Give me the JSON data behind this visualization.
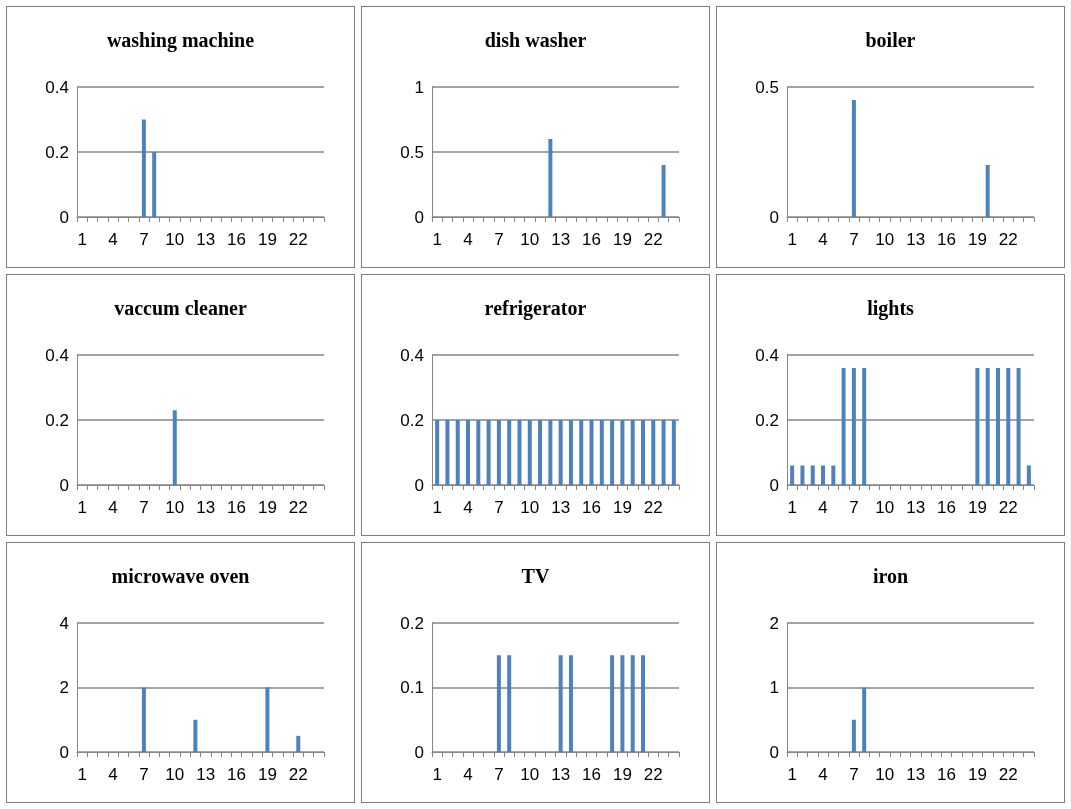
{
  "chart_data": [
    {
      "type": "bar",
      "title": "washing machine",
      "categories": [
        "1",
        null,
        null,
        "4",
        null,
        null,
        "7",
        null,
        null,
        "10",
        null,
        null,
        "13",
        null,
        null,
        "16",
        null,
        null,
        "19",
        null,
        null,
        "22",
        null,
        null
      ],
      "values": [
        0,
        0,
        0,
        0,
        0,
        0,
        0.3,
        0.2,
        0,
        0,
        0,
        0,
        0,
        0,
        0,
        0,
        0,
        0,
        0,
        0,
        0,
        0,
        0,
        0
      ],
      "color": "#4f81bd",
      "ylim": [
        0,
        0.4
      ],
      "yticks": [
        0,
        0.2,
        0.4
      ],
      "grid": "y"
    },
    {
      "type": "bar",
      "title": "dish washer",
      "categories": [
        "1",
        null,
        null,
        "4",
        null,
        null,
        "7",
        null,
        null,
        "10",
        null,
        null,
        "13",
        null,
        null,
        "16",
        null,
        null,
        "19",
        null,
        null,
        "22",
        null,
        null
      ],
      "values": [
        0,
        0,
        0,
        0,
        0,
        0,
        0,
        0,
        0,
        0,
        0,
        0.6,
        0,
        0,
        0,
        0,
        0,
        0,
        0,
        0,
        0,
        0,
        0.4,
        0
      ],
      "color": "#4f81bd",
      "ylim": [
        0,
        1
      ],
      "yticks": [
        0,
        0.5,
        1
      ],
      "grid": "y"
    },
    {
      "type": "bar",
      "title": "boiler",
      "categories": [
        "1",
        null,
        null,
        "4",
        null,
        null,
        "7",
        null,
        null,
        "10",
        null,
        null,
        "13",
        null,
        null,
        "16",
        null,
        null,
        "19",
        null,
        null,
        "22",
        null,
        null
      ],
      "values": [
        0,
        0,
        0,
        0,
        0,
        0,
        0.45,
        0,
        0,
        0,
        0,
        0,
        0,
        0,
        0,
        0,
        0,
        0,
        0,
        0.2,
        0,
        0,
        0,
        0
      ],
      "color": "#4f81bd",
      "ylim": [
        0,
        0.5
      ],
      "yticks": [
        0,
        0.5
      ],
      "grid": "y"
    },
    {
      "type": "bar",
      "title": "vaccum cleaner",
      "categories": [
        "1",
        null,
        null,
        "4",
        null,
        null,
        "7",
        null,
        null,
        "10",
        null,
        null,
        "13",
        null,
        null,
        "16",
        null,
        null,
        "19",
        null,
        null,
        "22",
        null,
        null
      ],
      "values": [
        0,
        0,
        0,
        0,
        0,
        0,
        0,
        0,
        0,
        0.23,
        0,
        0,
        0,
        0,
        0,
        0,
        0,
        0,
        0,
        0,
        0,
        0,
        0,
        0
      ],
      "color": "#4f81bd",
      "ylim": [
        0,
        0.4
      ],
      "yticks": [
        0,
        0.2,
        0.4
      ],
      "grid": "y"
    },
    {
      "type": "bar",
      "title": "refrigerator",
      "categories": [
        "1",
        null,
        null,
        "4",
        null,
        null,
        "7",
        null,
        null,
        "10",
        null,
        null,
        "13",
        null,
        null,
        "16",
        null,
        null,
        "19",
        null,
        null,
        "22",
        null,
        null
      ],
      "values": [
        0.2,
        0.2,
        0.2,
        0.2,
        0.2,
        0.2,
        0.2,
        0.2,
        0.2,
        0.2,
        0.2,
        0.2,
        0.2,
        0.2,
        0.2,
        0.2,
        0.2,
        0.2,
        0.2,
        0.2,
        0.2,
        0.2,
        0.2,
        0.2
      ],
      "color": "#4f81bd",
      "ylim": [
        0,
        0.4
      ],
      "yticks": [
        0,
        0.2,
        0.4
      ],
      "grid": "y"
    },
    {
      "type": "bar",
      "title": "lights",
      "categories": [
        "1",
        null,
        null,
        "4",
        null,
        null,
        "7",
        null,
        null,
        "10",
        null,
        null,
        "13",
        null,
        null,
        "16",
        null,
        null,
        "19",
        null,
        null,
        "22",
        null,
        null
      ],
      "values": [
        0.06,
        0.06,
        0.06,
        0.06,
        0.06,
        0.36,
        0.36,
        0.36,
        0,
        0,
        0,
        0,
        0,
        0,
        0,
        0,
        0,
        0,
        0.36,
        0.36,
        0.36,
        0.36,
        0.36,
        0.06
      ],
      "color": "#4f81bd",
      "ylim": [
        0,
        0.4
      ],
      "yticks": [
        0,
        0.2,
        0.4
      ],
      "grid": "y"
    },
    {
      "type": "bar",
      "title": "microwave oven",
      "categories": [
        "1",
        null,
        null,
        "4",
        null,
        null,
        "7",
        null,
        null,
        "10",
        null,
        null,
        "13",
        null,
        null,
        "16",
        null,
        null,
        "19",
        null,
        null,
        "22",
        null,
        null
      ],
      "values": [
        0,
        0,
        0,
        0,
        0,
        0,
        2,
        0,
        0,
        0,
        0,
        1,
        0,
        0,
        0,
        0,
        0,
        0,
        2,
        0,
        0,
        0.5,
        0,
        0
      ],
      "color": "#4f81bd",
      "ylim": [
        0,
        4
      ],
      "yticks": [
        0,
        2,
        4
      ],
      "grid": "y"
    },
    {
      "type": "bar",
      "title": "TV",
      "categories": [
        "1",
        null,
        null,
        "4",
        null,
        null,
        "7",
        null,
        null,
        "10",
        null,
        null,
        "13",
        null,
        null,
        "16",
        null,
        null,
        "19",
        null,
        null,
        "22",
        null,
        null
      ],
      "values": [
        0,
        0,
        0,
        0,
        0,
        0,
        0.15,
        0.15,
        0,
        0,
        0,
        0,
        0.15,
        0.15,
        0,
        0,
        0,
        0.15,
        0.15,
        0.15,
        0.15,
        0,
        0,
        0
      ],
      "color": "#4f81bd",
      "ylim": [
        0,
        0.2
      ],
      "yticks": [
        0,
        0.1,
        0.2
      ],
      "grid": "y"
    },
    {
      "type": "bar",
      "title": "iron",
      "categories": [
        "1",
        null,
        null,
        "4",
        null,
        null,
        "7",
        null,
        null,
        "10",
        null,
        null,
        "13",
        null,
        null,
        "16",
        null,
        null,
        "19",
        null,
        null,
        "22",
        null,
        null
      ],
      "values": [
        0,
        0,
        0,
        0,
        0,
        0,
        0.5,
        1,
        0,
        0,
        0,
        0,
        0,
        0,
        0,
        0,
        0,
        0,
        0,
        0,
        0,
        0,
        0,
        0
      ],
      "color": "#4f81bd",
      "ylim": [
        0,
        2
      ],
      "yticks": [
        0,
        1,
        2
      ],
      "grid": "y"
    }
  ]
}
